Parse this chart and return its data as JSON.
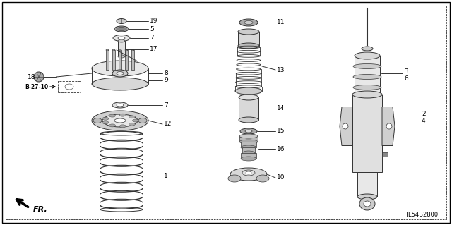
{
  "bg_color": "#ffffff",
  "diagram_code": "TL54B2800",
  "ref_code": "B-27-10",
  "line_color": "#333333",
  "label_color": "#000000",
  "figsize": [
    6.4,
    3.19
  ],
  "dpi": 100
}
